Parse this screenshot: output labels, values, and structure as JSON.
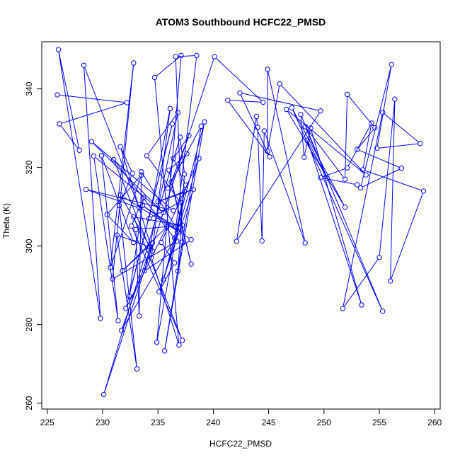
{
  "chart_data": {
    "type": "line",
    "title": "ATOM3 Southbound HCFC22_PMSD",
    "xlabel": "HCFC22_PMSD",
    "ylabel": "Theta (K)",
    "xlim": [
      224.5,
      260.5
    ],
    "ylim": [
      258.5,
      352.0
    ],
    "xticks": [
      225,
      230,
      235,
      240,
      245,
      250,
      255,
      260
    ],
    "yticks": [
      260,
      280,
      300,
      320,
      340
    ],
    "grid": false,
    "color": "#0000ff",
    "series": [
      {
        "markers": "open-circle",
        "points": [
          [
            225.9,
            338.5
          ],
          [
            232.2,
            336.5
          ],
          [
            226.1,
            331.1
          ],
          [
            227.9,
            324.4
          ],
          [
            226.0,
            350.0
          ],
          [
            229.8,
            281.6
          ],
          [
            228.3,
            346.0
          ],
          [
            233.3,
            309.7
          ],
          [
            228.5,
            314.4
          ],
          [
            236.4,
            309.0
          ],
          [
            229.0,
            326.6
          ],
          [
            235.5,
            308.5
          ],
          [
            229.2,
            322.9
          ],
          [
            231.4,
            281.0
          ],
          [
            229.9,
            323.0
          ],
          [
            232.8,
            300.9
          ],
          [
            230.4,
            308.0
          ],
          [
            233.5,
            318.1
          ],
          [
            230.7,
            294.5
          ],
          [
            232.8,
            346.6
          ],
          [
            230.9,
            291.6
          ],
          [
            236.7,
            301.2
          ],
          [
            231.0,
            322.0
          ],
          [
            234.2,
            299.8
          ],
          [
            231.3,
            302.8
          ],
          [
            233.1,
            268.7
          ],
          [
            231.5,
            310.3
          ],
          [
            232.7,
            318.5
          ],
          [
            231.6,
            325.3
          ],
          [
            234.5,
            298.7
          ],
          [
            231.6,
            313.0
          ],
          [
            236.9,
            303.6
          ],
          [
            231.7,
            278.5
          ],
          [
            234.5,
            300.8
          ],
          [
            231.8,
            293.7
          ],
          [
            235.8,
            304.9
          ],
          [
            232.1,
            284.1
          ],
          [
            236.3,
            331.1
          ],
          [
            232.4,
            287.3
          ],
          [
            233.7,
            312.4
          ],
          [
            232.6,
            305.1
          ],
          [
            237.2,
            276.0
          ],
          [
            232.8,
            307.4
          ],
          [
            237.2,
            305.3
          ],
          [
            233.0,
            304.2
          ],
          [
            233.3,
            282.2
          ],
          [
            233.5,
            318.9
          ],
          [
            236.6,
            304.9
          ],
          [
            233.6,
            310.3
          ],
          [
            238.0,
            301.6
          ],
          [
            233.8,
            293.7
          ],
          [
            236.8,
            334.0
          ],
          [
            234.0,
            323.0
          ],
          [
            237.0,
            311.2
          ],
          [
            234.2,
            307.0
          ],
          [
            236.1,
            335.0
          ],
          [
            234.4,
            297.0
          ],
          [
            236.9,
            274.8
          ],
          [
            234.7,
            342.9
          ],
          [
            237.1,
            348.5
          ],
          [
            234.9,
            275.5
          ],
          [
            237.4,
            313.9
          ],
          [
            235.0,
            311.3
          ],
          [
            238.2,
            314.4
          ],
          [
            235.1,
            288.4
          ],
          [
            236.5,
            295.7
          ],
          [
            235.3,
            300.9
          ],
          [
            238.7,
            322.3
          ],
          [
            235.5,
            291.4
          ],
          [
            239.2,
            331.6
          ],
          [
            235.6,
            273.3
          ],
          [
            238.9,
            330.5
          ],
          [
            235.9,
            314.7
          ],
          [
            237.6,
            323.5
          ],
          [
            236.0,
            319.3
          ],
          [
            238.0,
            295.4
          ],
          [
            236.2,
            316.3
          ],
          [
            237.8,
            328.1
          ],
          [
            236.4,
            322.3
          ],
          [
            237.5,
            315.5
          ],
          [
            236.5,
            302.0
          ],
          [
            238.5,
            348.5
          ],
          [
            236.6,
            348.2
          ],
          [
            237.2,
            301.0
          ],
          [
            236.8,
            293.6
          ],
          [
            237.4,
            318.3
          ],
          [
            237.0,
            327.7
          ],
          [
            230.1,
            262.2
          ],
          [
            240.1,
            348.2
          ],
          [
            244.5,
            336.6
          ],
          [
            241.3,
            337.1
          ],
          [
            245.1,
            322.7
          ],
          [
            242.4,
            339.0
          ],
          [
            249.7,
            334.4
          ],
          [
            242.1,
            301.2
          ],
          [
            243.9,
            333.0
          ],
          [
            244.0,
            330.2
          ],
          [
            244.4,
            301.3
          ],
          [
            244.6,
            329.3
          ],
          [
            248.3,
            300.8
          ],
          [
            244.9,
            345.0
          ],
          [
            244.9,
            324.1
          ],
          [
            246.0,
            341.3
          ],
          [
            253.8,
            318.1
          ],
          [
            246.6,
            334.8
          ],
          [
            251.9,
            309.9
          ],
          [
            247.1,
            335.2
          ],
          [
            255.3,
            283.4
          ],
          [
            247.9,
            333.5
          ],
          [
            248.2,
            322.6
          ],
          [
            248.8,
            330.0
          ],
          [
            253.4,
            285.0
          ],
          [
            248.5,
            326.9
          ],
          [
            250.3,
            317.2
          ],
          [
            248.3,
            330.4
          ],
          [
            251.9,
            317.0
          ],
          [
            252.1,
            338.6
          ],
          [
            254.6,
            330.1
          ],
          [
            253.0,
            324.6
          ],
          [
            257.0,
            319.8
          ],
          [
            253.3,
            314.8
          ],
          [
            256.1,
            346.2
          ],
          [
            254.8,
            324.9
          ],
          [
            258.7,
            326.1
          ],
          [
            255.3,
            334.0
          ],
          [
            251.7,
            284.1
          ],
          [
            255.0,
            297.1
          ],
          [
            256.4,
            337.4
          ],
          [
            256.0,
            291.1
          ],
          [
            259.0,
            314.0
          ],
          [
            253.5,
            319.4
          ],
          [
            254.3,
            331.3
          ],
          [
            252.1,
            319.9
          ],
          [
            249.7,
            317.4
          ],
          [
            253.0,
            315.6
          ]
        ]
      }
    ]
  }
}
